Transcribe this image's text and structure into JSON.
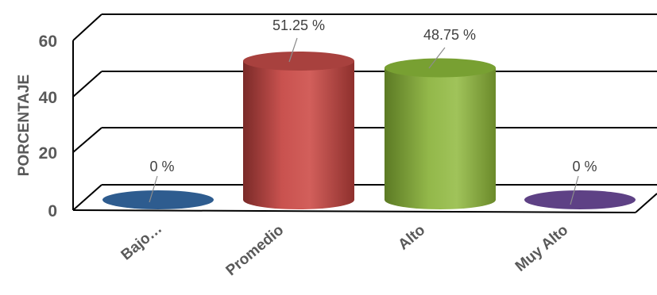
{
  "chart_data": {
    "type": "bar",
    "shape": "3d-cylinder",
    "title": "",
    "xlabel": "",
    "ylabel": "PORCENTAJE",
    "ylim": [
      0,
      60
    ],
    "yticks": [
      "0",
      "20",
      "40",
      "60"
    ],
    "grid": true,
    "legend": "none",
    "categories": [
      "Bajo…",
      "Promedio",
      "Alto",
      "Muy Alto"
    ],
    "values": [
      0,
      51.25,
      48.75,
      0
    ],
    "data_labels": [
      "0 %",
      "51.25 %",
      "48.75 %",
      "0 %"
    ],
    "colors": [
      "#2e5c8f",
      "#c0504d",
      "#8db33f",
      "#5e4185"
    ]
  }
}
